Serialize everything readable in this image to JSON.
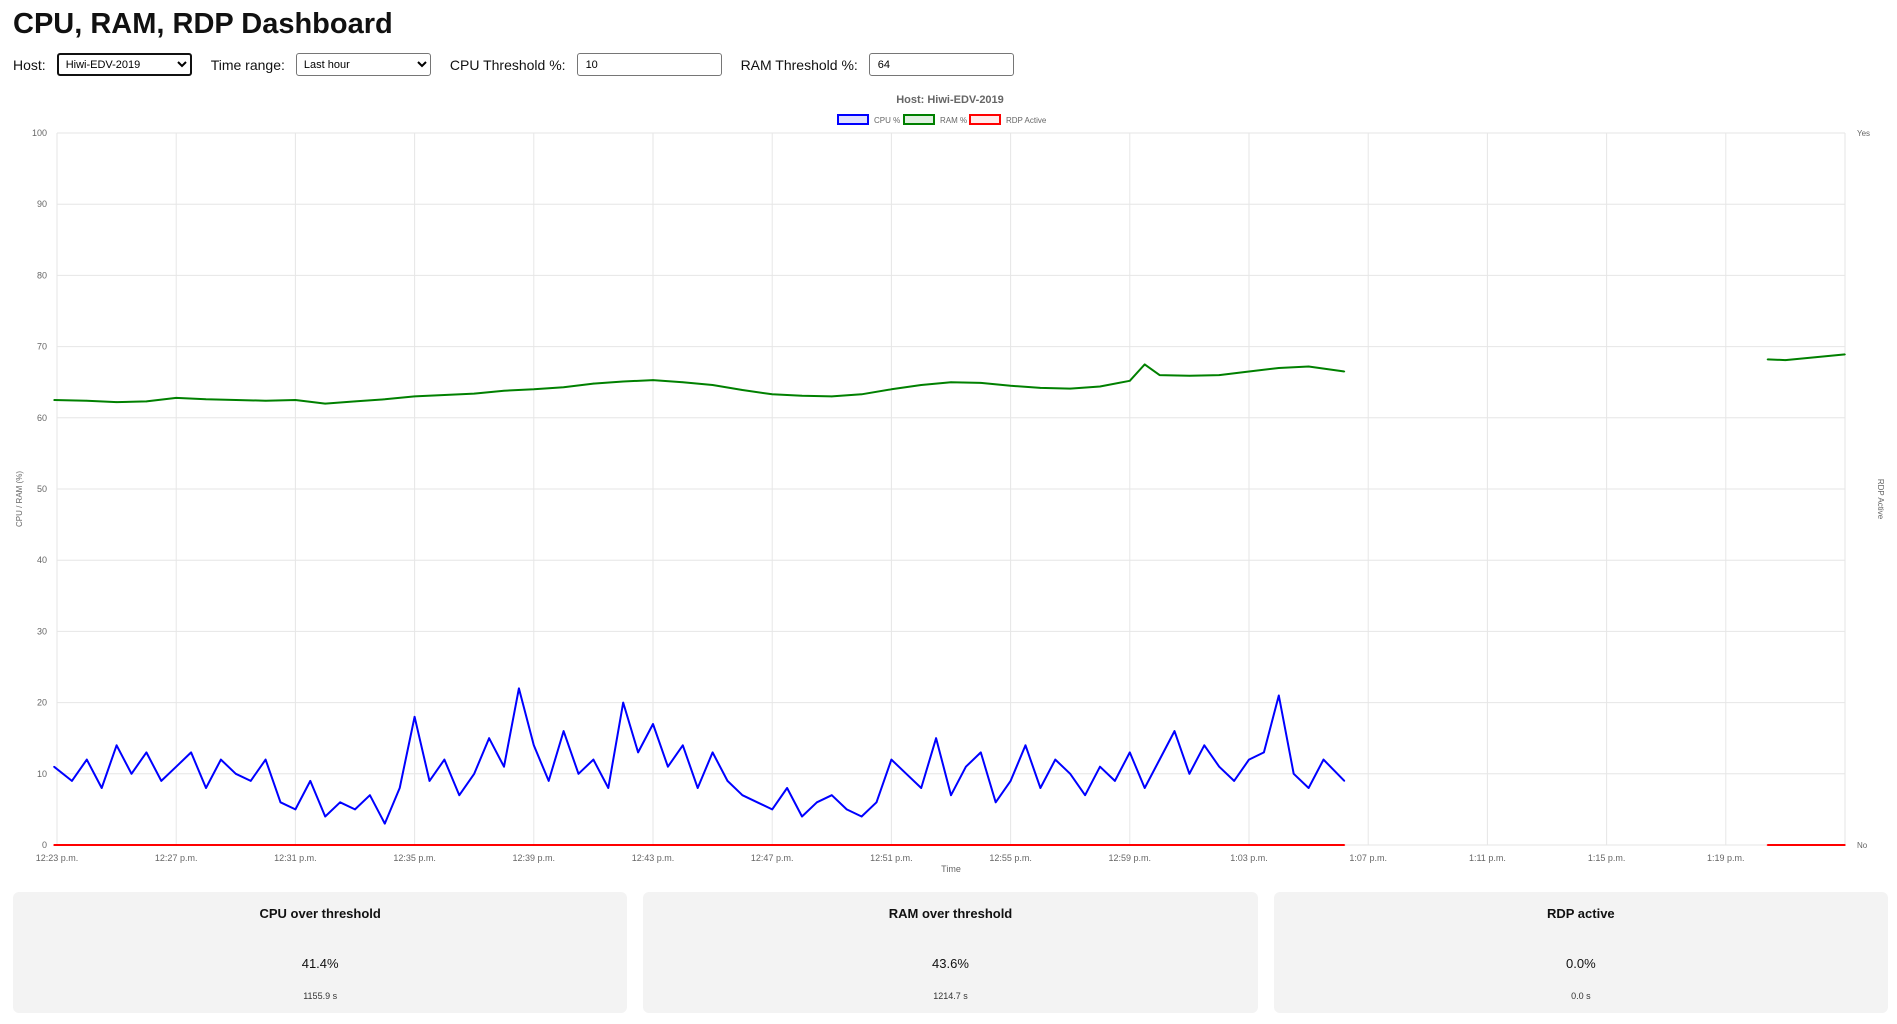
{
  "header": {
    "title": "CPU, RAM, RDP Dashboard"
  },
  "controls": {
    "host_label": "Host:",
    "host_value": "Hiwi-EDV-2019",
    "time_label": "Time range:",
    "time_value": "Last hour",
    "cpu_label": "CPU Threshold %:",
    "cpu_value": "10",
    "ram_label": "RAM Threshold %:",
    "ram_value": "64"
  },
  "chart_data": {
    "type": "line",
    "title": "Host: Hiwi-EDV-2019",
    "xlabel": "Time",
    "ylabel": "CPU / RAM (%)",
    "y2label": "RDP Active",
    "ylim": [
      0,
      100
    ],
    "yticks": [
      "0",
      "10",
      "20",
      "30",
      "40",
      "50",
      "60",
      "70",
      "80",
      "90",
      "100"
    ],
    "y2ticks": [
      "No",
      "Yes"
    ],
    "xlim_minutes": [
      0,
      60
    ],
    "xticks": [
      {
        "m": 0,
        "label": "12:23 p.m."
      },
      {
        "m": 4,
        "label": "12:27 p.m."
      },
      {
        "m": 8,
        "label": "12:31 p.m."
      },
      {
        "m": 12,
        "label": "12:35 p.m."
      },
      {
        "m": 16,
        "label": "12:39 p.m."
      },
      {
        "m": 20,
        "label": "12:43 p.m."
      },
      {
        "m": 24,
        "label": "12:47 p.m."
      },
      {
        "m": 28,
        "label": "12:51 p.m."
      },
      {
        "m": 32,
        "label": "12:55 p.m."
      },
      {
        "m": 36,
        "label": "12:59 p.m."
      },
      {
        "m": 40,
        "label": "1:03 p.m."
      },
      {
        "m": 44,
        "label": "1:07 p.m."
      },
      {
        "m": 48,
        "label": "1:11 p.m."
      },
      {
        "m": 52,
        "label": "1:15 p.m."
      },
      {
        "m": 56,
        "label": "1:19 p.m."
      }
    ],
    "grid": true,
    "legend_position": "top-center",
    "series": [
      {
        "name": "CPU %",
        "color": "#0000ff",
        "segments": [
          {
            "x": [
              -0.1,
              0.5,
              1,
              1.5,
              2,
              2.5,
              3,
              3.5,
              4,
              4.5,
              5,
              5.5,
              6,
              6.5,
              7,
              7.5,
              8,
              8.5,
              9,
              9.5,
              10,
              10.5,
              11,
              11.5,
              12,
              12.5,
              13,
              13.5,
              14,
              14.5,
              15,
              15.5,
              16,
              16.5,
              17,
              17.5,
              18,
              18.5,
              19,
              19.5,
              20,
              20.5,
              21,
              21.5,
              22,
              22.5,
              23,
              23.5,
              24,
              24.5,
              25,
              25.5,
              26,
              26.5,
              27,
              27.5,
              28,
              28.5,
              29,
              29.5,
              30,
              30.5,
              31,
              31.5,
              32,
              32.5,
              33,
              33.5,
              34,
              34.5,
              35,
              35.5,
              36,
              36.5,
              37,
              37.5,
              38,
              38.5,
              39,
              39.5,
              40,
              40.5,
              41,
              41.5,
              42,
              42.5,
              43.2
            ],
            "y": [
              11,
              9,
              12,
              8,
              14,
              10,
              13,
              9,
              11,
              13,
              8,
              12,
              10,
              9,
              12,
              6,
              5,
              9,
              4,
              6,
              5,
              7,
              3,
              8,
              18,
              9,
              12,
              7,
              10,
              15,
              11,
              22,
              14,
              9,
              16,
              10,
              12,
              8,
              20,
              13,
              17,
              11,
              14,
              8,
              13,
              9,
              7,
              6,
              5,
              8,
              4,
              6,
              7,
              5,
              4,
              6,
              12,
              10,
              8,
              15,
              7,
              11,
              13,
              6,
              9,
              14,
              8,
              12,
              10,
              7,
              11,
              9,
              13,
              8,
              12,
              16,
              10,
              14,
              11,
              9,
              12,
              13,
              21,
              10,
              8,
              12,
              9
            ]
          }
        ]
      },
      {
        "name": "RAM %",
        "color": "#008000",
        "segments": [
          {
            "x": [
              -0.1,
              1,
              2,
              3,
              4,
              5,
              6,
              7,
              8,
              9,
              10,
              11,
              12,
              13,
              14,
              15,
              16,
              17,
              18,
              19,
              20,
              21,
              22,
              23,
              24,
              25,
              26,
              27,
              28,
              29,
              30,
              31,
              32,
              33,
              34,
              35,
              36,
              36.5,
              37,
              38,
              39,
              40,
              41,
              42,
              43.2
            ],
            "y": [
              62.5,
              62.4,
              62.2,
              62.3,
              62.8,
              62.6,
              62.5,
              62.4,
              62.5,
              62.0,
              62.3,
              62.6,
              63.0,
              63.2,
              63.4,
              63.8,
              64.0,
              64.3,
              64.8,
              65.1,
              65.3,
              65.0,
              64.6,
              63.9,
              63.3,
              63.1,
              63.0,
              63.3,
              64.0,
              64.6,
              65.0,
              64.9,
              64.5,
              64.2,
              64.1,
              64.4,
              65.2,
              67.5,
              66.0,
              65.9,
              66.0,
              66.5,
              67.0,
              67.2,
              66.5
            ]
          },
          {
            "x": [
              57.4,
              58,
              59,
              60
            ],
            "y": [
              68.2,
              68.1,
              68.5,
              68.9
            ]
          }
        ]
      },
      {
        "name": "RDP Active",
        "color": "#ff0000",
        "segments": [
          {
            "x": [
              -0.1,
              43.2
            ],
            "y": [
              0,
              0
            ]
          },
          {
            "x": [
              57.4,
              60
            ],
            "y": [
              0,
              0
            ]
          }
        ]
      }
    ]
  },
  "summary": [
    {
      "title": "CPU over threshold",
      "percent": "41.4%",
      "seconds": "1155.9 s"
    },
    {
      "title": "RAM over threshold",
      "percent": "43.6%",
      "seconds": "1214.7 s"
    },
    {
      "title": "RDP active",
      "percent": "0.0%",
      "seconds": "0.0 s"
    }
  ]
}
